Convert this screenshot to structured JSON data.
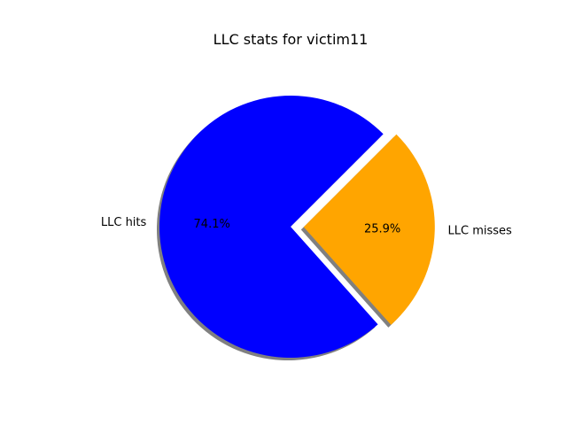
{
  "chart_data": {
    "type": "pie",
    "title": "LLC stats for victim11",
    "slices": [
      {
        "label": "LLC hits",
        "value": 74.1,
        "pct_label": "74.1%",
        "color": "#0000ff",
        "explode": false
      },
      {
        "label": "LLC misses",
        "value": 25.9,
        "pct_label": "25.9%",
        "color": "#ffa500",
        "explode": true
      }
    ],
    "start_angle_deg": 45,
    "direction": "counterclockwise",
    "shadow": true,
    "shadow_color": "#808080"
  }
}
